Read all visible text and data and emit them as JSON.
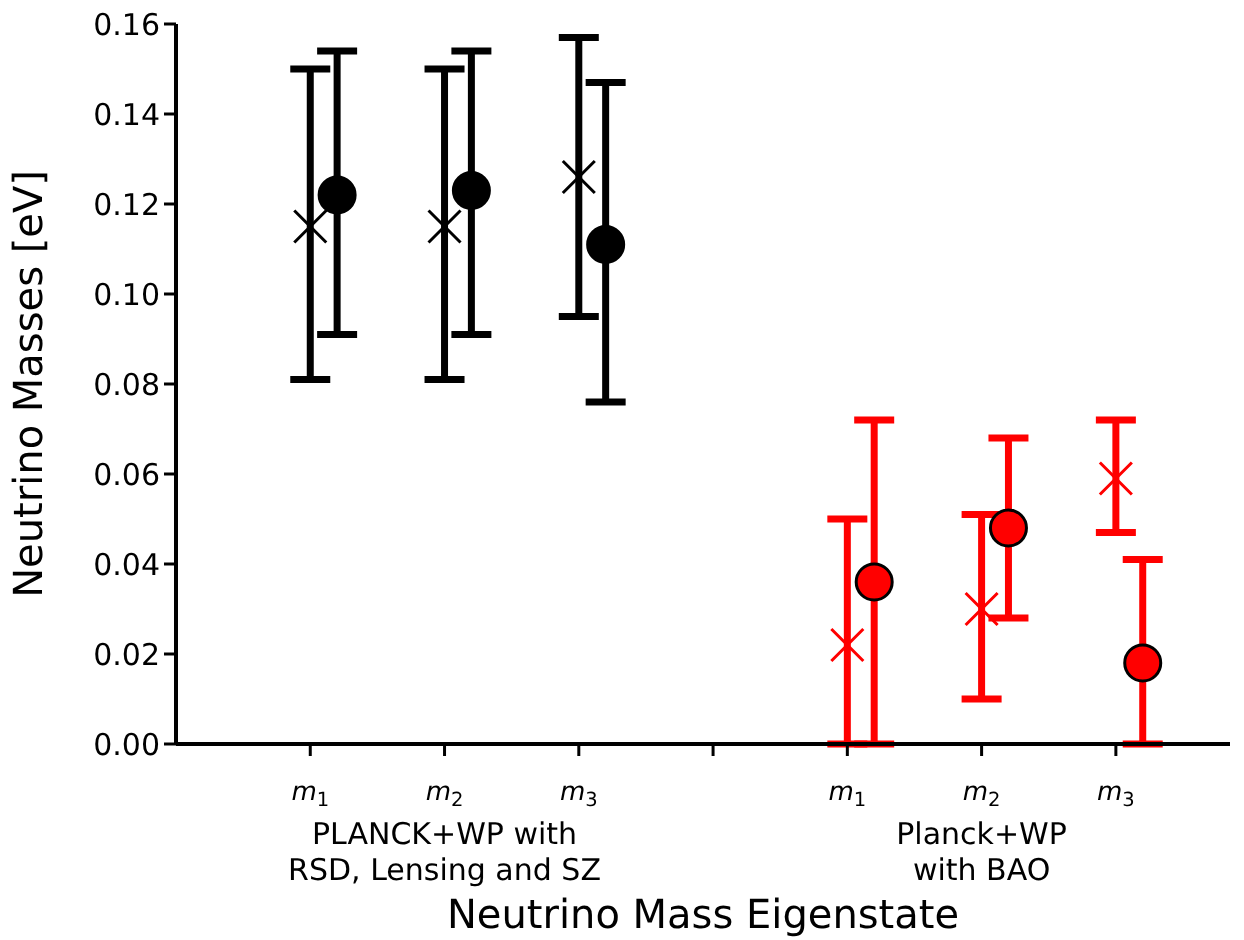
{
  "chart_data": {
    "type": "scatter",
    "xlabel": "Neutrino Mass Eigenstate",
    "ylabel": "Neutrino Masses [eV]",
    "categories": [
      "m$_{1}$",
      "m$_{2}$",
      "m$_{3}$",
      null,
      "m$_{1}$",
      "m$_{2}$",
      "m$_{3}$"
    ],
    "ylim": [
      0,
      0.16
    ],
    "yticks": [
      {
        "value": 0,
        "label": "0.00"
      },
      {
        "value": 0.02,
        "label": "0.02"
      },
      {
        "value": 0.04,
        "label": "0.04"
      },
      {
        "value": 0.06,
        "label": "0.06"
      },
      {
        "value": 0.08,
        "label": "0.08"
      },
      {
        "value": 0.1,
        "label": "0.10"
      },
      {
        "value": 0.12,
        "label": "0.12"
      },
      {
        "value": 0.14,
        "label": "0.14"
      },
      {
        "value": 0.16,
        "label": "0.16"
      }
    ],
    "annotations": [
      "PLANCK+WP with\nRSD, Lensing and SZ",
      "Planck+WP\nwith BAO"
    ],
    "series": [
      {
        "color": "#000000",
        "marker": "cross",
        "values": [
          0.115,
          0.115,
          0.126,
          null,
          null,
          null,
          null
        ],
        "errors": [
          [
            0.081,
            0.15
          ],
          [
            0.081,
            0.15
          ],
          [
            0.095,
            0.157
          ],
          null,
          null,
          null,
          null
        ]
      },
      {
        "color": "#000000",
        "marker": "circle",
        "values": [
          0.122,
          0.123,
          0.111,
          null,
          null,
          null,
          null
        ],
        "errors": [
          [
            0.091,
            0.154
          ],
          [
            0.091,
            0.154
          ],
          [
            0.076,
            0.147
          ],
          null,
          null,
          null,
          null
        ]
      },
      {
        "color": "#ff0000",
        "marker": "cross",
        "values": [
          null,
          null,
          null,
          null,
          0.022,
          0.03,
          0.059
        ],
        "errors": [
          null,
          null,
          null,
          null,
          [
            0,
            0.05
          ],
          [
            0.01,
            0.051
          ],
          [
            0.047,
            0.072
          ]
        ]
      },
      {
        "color": "#ff0000",
        "marker": "circle",
        "values": [
          null,
          null,
          null,
          null,
          0.036,
          0.048,
          0.018
        ],
        "errors": [
          null,
          null,
          null,
          null,
          [
            0,
            0.072
          ],
          [
            0.028,
            0.068
          ],
          [
            0,
            0.041
          ]
        ]
      }
    ]
  }
}
